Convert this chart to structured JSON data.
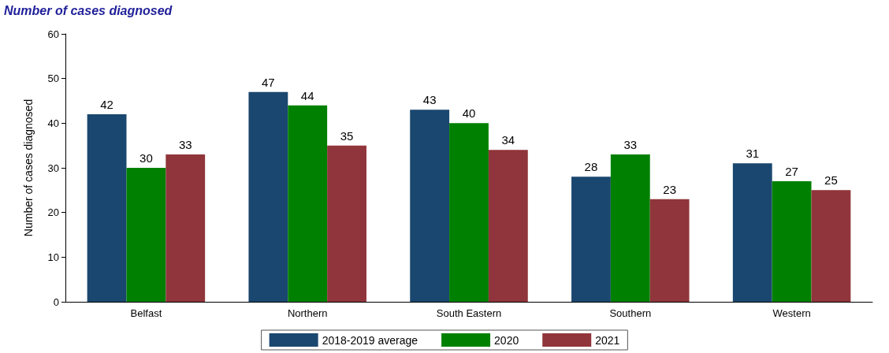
{
  "chart_data": {
    "type": "bar",
    "title": "Number of cases diagnosed",
    "ylabel": "Number of cases diagnosed",
    "categories": [
      "Belfast",
      "Northern",
      "South Eastern",
      "Southern",
      "Western"
    ],
    "series": [
      {
        "name": "2018-2019 average",
        "color": "#1a476f",
        "values": [
          42,
          47,
          43,
          28,
          31
        ]
      },
      {
        "name": "2020",
        "color": "#008000",
        "values": [
          30,
          44,
          40,
          33,
          27
        ]
      },
      {
        "name": "2021",
        "color": "#90353b",
        "values": [
          33,
          35,
          34,
          23,
          25
        ]
      }
    ],
    "ylim": [
      0,
      60
    ],
    "yticks": [
      0,
      10,
      20,
      30,
      40,
      50,
      60
    ],
    "grid": false,
    "legend": "bottom",
    "data_labels": true
  }
}
